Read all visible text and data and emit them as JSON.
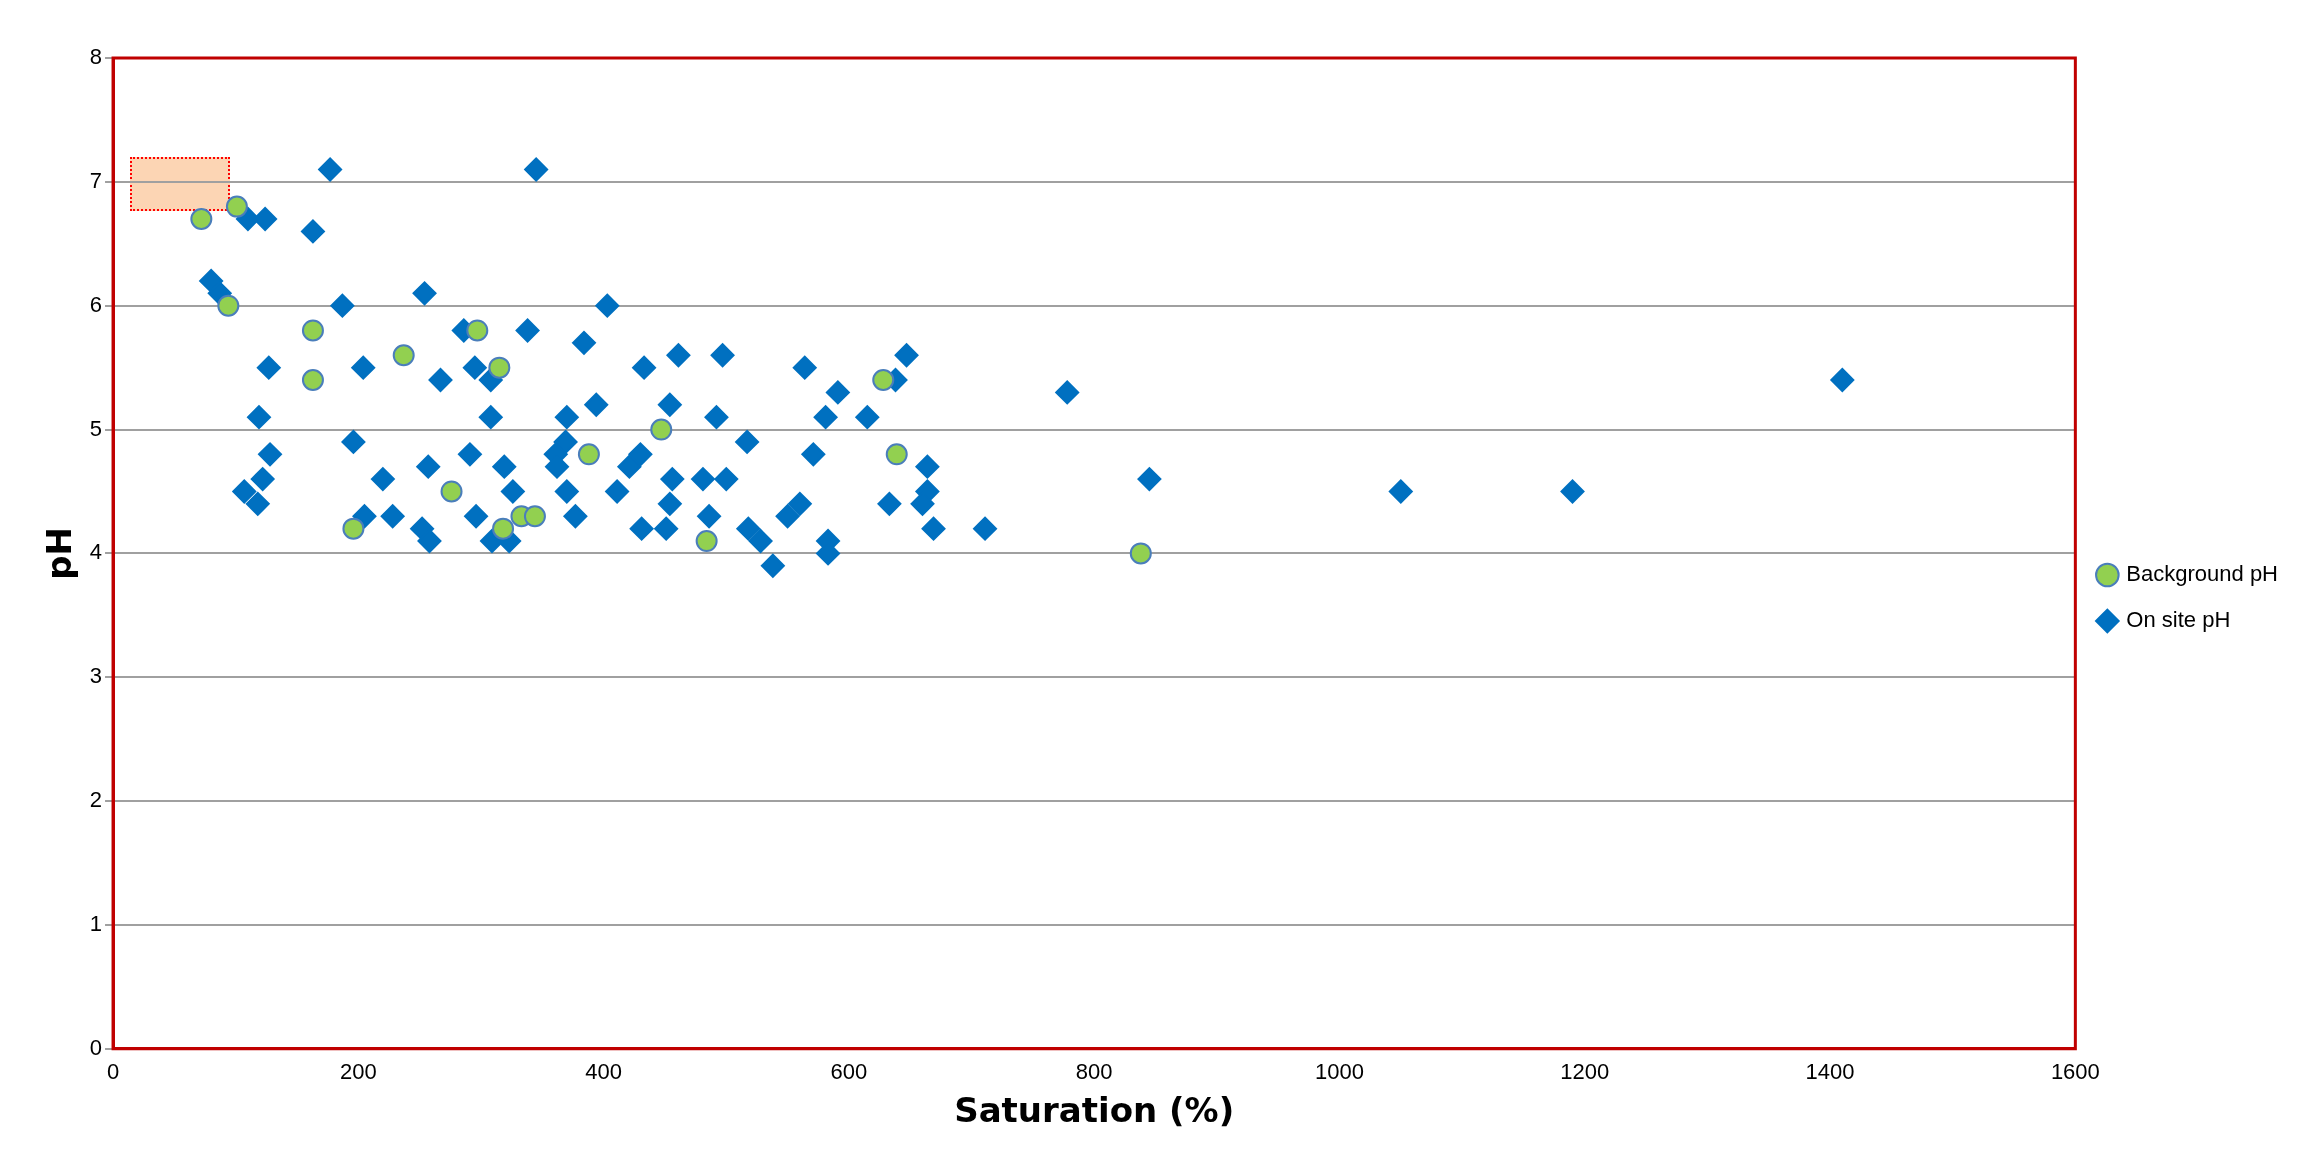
{
  "chart_data": {
    "type": "scatter",
    "xlabel": "Saturation (%)",
    "ylabel": "pH",
    "xlim": [
      0,
      1600
    ],
    "xticks": [
      0,
      200,
      400,
      600,
      800,
      1000,
      1200,
      1400,
      1600
    ],
    "ylim": [
      0,
      8
    ],
    "yticks": [
      0,
      1,
      2,
      3,
      4,
      5,
      6,
      7,
      8
    ],
    "grid": "y",
    "legend": "right",
    "series": [
      {
        "name": "Background pH",
        "color": "#92d050",
        "marker": "circle",
        "x": [
          72,
          101,
          94,
          163,
          163,
          196,
          237,
          276,
          297,
          315,
          318,
          333,
          344,
          388,
          447,
          484,
          628,
          639,
          838
        ],
        "values": [
          6.7,
          6.8,
          6.0,
          5.8,
          5.4,
          4.2,
          5.6,
          4.5,
          5.8,
          5.5,
          4.2,
          4.3,
          4.3,
          4.8,
          5.0,
          4.1,
          5.4,
          4.8,
          4.0
        ]
      },
      {
        "name": "On site pH",
        "color": "#0070c0",
        "marker": "diamond",
        "x": [
          177,
          345,
          110,
          124,
          163,
          80,
          87,
          187,
          403,
          254,
          127,
          204,
          267,
          286,
          295,
          308,
          308,
          338,
          384,
          433,
          461,
          497,
          564,
          647,
          638,
          591,
          615,
          581,
          571,
          492,
          454,
          394,
          370,
          369,
          361,
          362,
          370,
          377,
          411,
          421,
          430,
          456,
          454,
          431,
          451,
          481,
          500,
          486,
          517,
          518,
          528,
          538,
          550,
          560,
          583,
          583,
          633,
          664,
          664,
          660,
          669,
          711,
          778,
          845,
          1050,
          1190,
          1410,
          119,
          196,
          128,
          122,
          107,
          118,
          220,
          205,
          228,
          257,
          252,
          258,
          291,
          319,
          326,
          296,
          309,
          323
        ],
        "values": [
          7.1,
          7.1,
          6.7,
          6.7,
          6.6,
          6.2,
          6.1,
          6.0,
          6.0,
          6.1,
          5.5,
          5.5,
          5.4,
          5.8,
          5.5,
          5.4,
          5.1,
          5.8,
          5.7,
          5.5,
          5.6,
          5.6,
          5.5,
          5.6,
          5.4,
          5.3,
          5.1,
          5.1,
          4.8,
          5.1,
          5.2,
          5.2,
          5.1,
          4.9,
          4.8,
          4.7,
          4.5,
          4.3,
          4.5,
          4.7,
          4.8,
          4.6,
          4.4,
          4.2,
          4.2,
          4.6,
          4.6,
          4.3,
          4.9,
          4.2,
          4.1,
          3.9,
          4.3,
          4.4,
          4.1,
          4.0,
          4.4,
          4.7,
          4.5,
          4.4,
          4.2,
          4.2,
          5.3,
          4.6,
          4.5,
          4.5,
          5.4,
          5.1,
          4.9,
          4.8,
          4.6,
          4.5,
          4.4,
          4.6,
          4.3,
          4.3,
          4.7,
          4.2,
          4.1,
          4.8,
          4.7,
          4.5,
          4.3,
          4.1,
          4.1
        ]
      }
    ]
  }
}
